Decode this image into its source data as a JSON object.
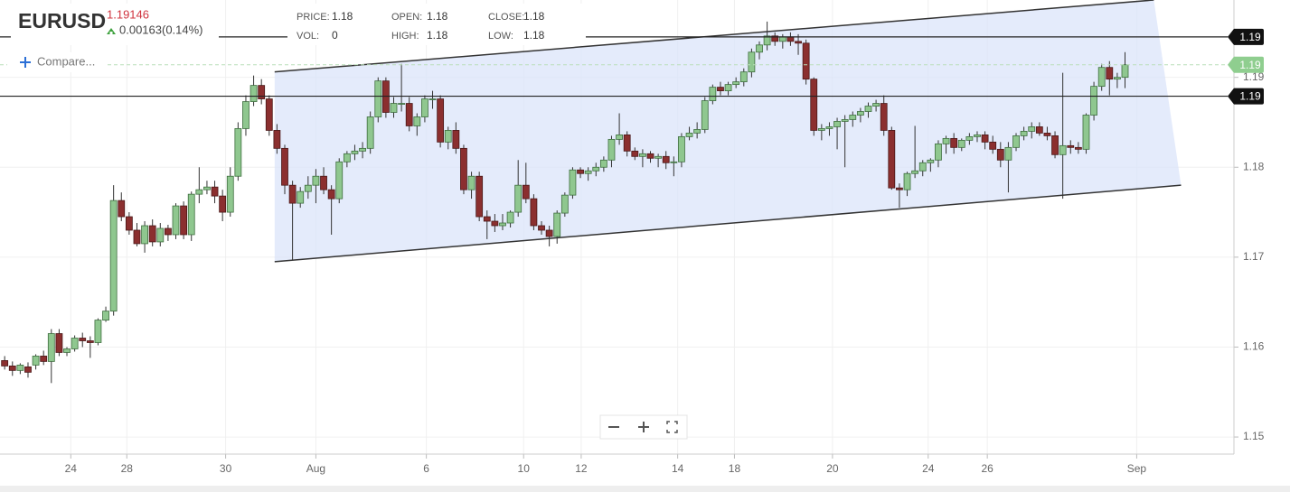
{
  "chart_data": {
    "type": "candlestick",
    "symbol": "EURUSD",
    "last": "1.19146",
    "change": "0.00163(0.14%)",
    "compare": "Compare...",
    "info": [
      {
        "label": "PRICE:",
        "value": 1.18
      },
      {
        "label": "VOL:",
        "value": 0
      },
      {
        "label": "OPEN:",
        "value": 1.18
      },
      {
        "label": "HIGH:",
        "value": 1.18
      },
      {
        "label": "CLOSE:",
        "value": 1.18
      },
      {
        "label": "LOW:",
        "value": 1.18
      }
    ],
    "up_color": "#8fc78f",
    "down_color": "#8b2f2f",
    "xlim": [
      -0.6,
      158
    ],
    "ylim": [
      1.1481,
      1.1986
    ],
    "yticks": [
      1.15,
      1.16,
      1.17,
      1.18,
      1.19
    ],
    "xticks": [
      {
        "value": 8.5,
        "label": "24"
      },
      {
        "value": 15.7,
        "label": "28"
      },
      {
        "value": 28.4,
        "label": "30"
      },
      {
        "value": 40,
        "label": "Aug"
      },
      {
        "value": 54.2,
        "label": "6"
      },
      {
        "value": 66.7,
        "label": "10"
      },
      {
        "value": 74.1,
        "label": "12"
      },
      {
        "value": 86.5,
        "label": "14"
      },
      {
        "value": 93.8,
        "label": "18"
      },
      {
        "value": 106.4,
        "label": "20"
      },
      {
        "value": 118.7,
        "label": "24"
      },
      {
        "value": 126.3,
        "label": "26"
      },
      {
        "value": 145.5,
        "label": "Sep"
      }
    ],
    "grid": true,
    "channel": {
      "upper": [
        [
          34.7,
          1.1906
        ],
        [
          147.7,
          1.1986
        ]
      ],
      "lower": [
        [
          34.7,
          1.1695
        ],
        [
          151.2,
          1.178
        ]
      ],
      "color": "#dbe4fa"
    },
    "price_lines": [
      {
        "value": 1.1945,
        "label": "1.19",
        "color": "#111111",
        "dashed": false
      },
      {
        "value": 1.1914,
        "label": "1.19",
        "color": "#8fce8f",
        "dashed": true
      },
      {
        "value": 1.1879,
        "label": "1.19",
        "color": "#111111",
        "dashed": false
      }
    ],
    "candles": [
      [
        1.1585,
        1.159,
        1.1575,
        1.1579
      ],
      [
        1.1579,
        1.1584,
        1.1568,
        1.1574
      ],
      [
        1.1574,
        1.1582,
        1.157,
        1.158
      ],
      [
        1.1578,
        1.1583,
        1.1566,
        1.1572
      ],
      [
        1.158,
        1.1592,
        1.1575,
        1.159
      ],
      [
        1.159,
        1.1596,
        1.158,
        1.1584
      ],
      [
        1.1584,
        1.162,
        1.156,
        1.1615
      ],
      [
        1.1615,
        1.162,
        1.159,
        1.1594
      ],
      [
        1.1594,
        1.16,
        1.159,
        1.1598
      ],
      [
        1.1598,
        1.1613,
        1.1595,
        1.161
      ],
      [
        1.161,
        1.1616,
        1.16,
        1.1607
      ],
      [
        1.1607,
        1.1612,
        1.1588,
        1.1605
      ],
      [
        1.1605,
        1.1632,
        1.1602,
        1.163
      ],
      [
        1.163,
        1.1645,
        1.1628,
        1.164
      ],
      [
        1.164,
        1.178,
        1.1635,
        1.1763
      ],
      [
        1.1763,
        1.1772,
        1.174,
        1.1745
      ],
      [
        1.1745,
        1.175,
        1.1725,
        1.173
      ],
      [
        1.173,
        1.1738,
        1.1712,
        1.1715
      ],
      [
        1.1715,
        1.174,
        1.1705,
        1.1735
      ],
      [
        1.1735,
        1.1742,
        1.1712,
        1.1717
      ],
      [
        1.1717,
        1.1738,
        1.1712,
        1.1732
      ],
      [
        1.1732,
        1.1736,
        1.1718,
        1.1725
      ],
      [
        1.1725,
        1.176,
        1.172,
        1.1757
      ],
      [
        1.1757,
        1.1762,
        1.172,
        1.1725
      ],
      [
        1.1725,
        1.1773,
        1.1718,
        1.177
      ],
      [
        1.177,
        1.18,
        1.176,
        1.1775
      ],
      [
        1.1775,
        1.1785,
        1.177,
        1.1778
      ],
      [
        1.1778,
        1.1785,
        1.176,
        1.1768
      ],
      [
        1.1768,
        1.1775,
        1.174,
        1.175
      ],
      [
        1.175,
        1.18,
        1.1745,
        1.179
      ],
      [
        1.179,
        1.185,
        1.1785,
        1.1843
      ],
      [
        1.1843,
        1.188,
        1.1835,
        1.1873
      ],
      [
        1.1873,
        1.1902,
        1.1868,
        1.1891
      ],
      [
        1.1891,
        1.1898,
        1.187,
        1.1876
      ],
      [
        1.1876,
        1.188,
        1.1835,
        1.1841
      ],
      [
        1.1841,
        1.1848,
        1.1815,
        1.1821
      ],
      [
        1.1821,
        1.1825,
        1.177,
        1.178
      ],
      [
        1.178,
        1.1785,
        1.1697,
        1.176
      ],
      [
        1.176,
        1.1778,
        1.1755,
        1.1773
      ],
      [
        1.1773,
        1.179,
        1.1765,
        1.178
      ],
      [
        1.178,
        1.1798,
        1.176,
        1.179
      ],
      [
        1.179,
        1.18,
        1.177,
        1.1775
      ],
      [
        1.1775,
        1.178,
        1.1725,
        1.1765
      ],
      [
        1.1765,
        1.181,
        1.176,
        1.1806
      ],
      [
        1.1806,
        1.1818,
        1.18,
        1.1815
      ],
      [
        1.1815,
        1.1825,
        1.1808,
        1.1818
      ],
      [
        1.1818,
        1.1828,
        1.181,
        1.1821
      ],
      [
        1.1821,
        1.1862,
        1.1815,
        1.1856
      ],
      [
        1.1856,
        1.19,
        1.185,
        1.1896
      ],
      [
        1.1896,
        1.19,
        1.1855,
        1.1861
      ],
      [
        1.1861,
        1.1878,
        1.1855,
        1.1871
      ],
      [
        1.1871,
        1.1915,
        1.1862,
        1.1871
      ],
      [
        1.1871,
        1.1878,
        1.184,
        1.1846
      ],
      [
        1.1846,
        1.186,
        1.1835,
        1.1856
      ],
      [
        1.1856,
        1.188,
        1.185,
        1.1876
      ],
      [
        1.1876,
        1.1885,
        1.1865,
        1.1876
      ],
      [
        1.1876,
        1.188,
        1.1822,
        1.1828
      ],
      [
        1.1828,
        1.1845,
        1.182,
        1.1841
      ],
      [
        1.1841,
        1.185,
        1.1815,
        1.1821
      ],
      [
        1.1821,
        1.1825,
        1.177,
        1.1775
      ],
      [
        1.1775,
        1.1795,
        1.1765,
        1.179
      ],
      [
        1.179,
        1.1795,
        1.174,
        1.1745
      ],
      [
        1.1745,
        1.1752,
        1.172,
        1.174
      ],
      [
        1.174,
        1.1748,
        1.1728,
        1.1735
      ],
      [
        1.1735,
        1.1748,
        1.173,
        1.1738
      ],
      [
        1.1738,
        1.1752,
        1.1733,
        1.175
      ],
      [
        1.175,
        1.1808,
        1.1745,
        1.178
      ],
      [
        1.178,
        1.1805,
        1.176,
        1.1765
      ],
      [
        1.1765,
        1.177,
        1.173,
        1.1735
      ],
      [
        1.1735,
        1.174,
        1.1725,
        1.173
      ],
      [
        1.173,
        1.1735,
        1.1712,
        1.1723
      ],
      [
        1.1723,
        1.1752,
        1.1715,
        1.1749
      ],
      [
        1.1749,
        1.1772,
        1.1745,
        1.1769
      ],
      [
        1.1769,
        1.18,
        1.1765,
        1.1797
      ],
      [
        1.1797,
        1.18,
        1.1788,
        1.1793
      ],
      [
        1.1793,
        1.18,
        1.1785,
        1.1796
      ],
      [
        1.1796,
        1.1805,
        1.179,
        1.18
      ],
      [
        1.18,
        1.1812,
        1.1795,
        1.1808
      ],
      [
        1.1808,
        1.1835,
        1.18,
        1.1831
      ],
      [
        1.1831,
        1.186,
        1.1825,
        1.1836
      ],
      [
        1.1836,
        1.184,
        1.1812,
        1.1818
      ],
      [
        1.1818,
        1.1822,
        1.1808,
        1.1812
      ],
      [
        1.1812,
        1.182,
        1.18,
        1.1815
      ],
      [
        1.1815,
        1.1818,
        1.1805,
        1.181
      ],
      [
        1.181,
        1.1815,
        1.18,
        1.1812
      ],
      [
        1.1812,
        1.1818,
        1.1798,
        1.1805
      ],
      [
        1.1805,
        1.1812,
        1.179,
        1.1806
      ],
      [
        1.1806,
        1.1838,
        1.18,
        1.1834
      ],
      [
        1.1834,
        1.1845,
        1.183,
        1.1838
      ],
      [
        1.1838,
        1.185,
        1.1832,
        1.1842
      ],
      [
        1.1842,
        1.1878,
        1.1838,
        1.1874
      ],
      [
        1.1874,
        1.1892,
        1.187,
        1.1889
      ],
      [
        1.1889,
        1.1895,
        1.188,
        1.1885
      ],
      [
        1.1885,
        1.1895,
        1.188,
        1.1892
      ],
      [
        1.1892,
        1.19,
        1.1888,
        1.1895
      ],
      [
        1.1895,
        1.191,
        1.189,
        1.1906
      ],
      [
        1.1906,
        1.1932,
        1.19,
        1.1928
      ],
      [
        1.1928,
        1.194,
        1.192,
        1.1936
      ],
      [
        1.1936,
        1.1962,
        1.193,
        1.1946
      ],
      [
        1.1946,
        1.195,
        1.1935,
        1.194
      ],
      [
        1.194,
        1.1948,
        1.1932,
        1.1945
      ],
      [
        1.1945,
        1.195,
        1.1935,
        1.194
      ],
      [
        1.194,
        1.1948,
        1.1925,
        1.1938
      ],
      [
        1.1938,
        1.1942,
        1.1892,
        1.1898
      ],
      [
        1.1898,
        1.19,
        1.1835,
        1.1841
      ],
      [
        1.1841,
        1.1848,
        1.183,
        1.1843
      ],
      [
        1.1843,
        1.185,
        1.1835,
        1.1845
      ],
      [
        1.1845,
        1.1855,
        1.182,
        1.1851
      ],
      [
        1.1851,
        1.1858,
        1.18,
        1.1853
      ],
      [
        1.1853,
        1.1862,
        1.1845,
        1.1858
      ],
      [
        1.1858,
        1.1866,
        1.185,
        1.1862
      ],
      [
        1.1862,
        1.1872,
        1.1855,
        1.1868
      ],
      [
        1.1868,
        1.1875,
        1.1862,
        1.1871
      ],
      [
        1.1871,
        1.188,
        1.1835,
        1.1841
      ],
      [
        1.1841,
        1.1845,
        1.1775,
        1.1777
      ],
      [
        1.1777,
        1.1782,
        1.1755,
        1.1775
      ],
      [
        1.1775,
        1.1795,
        1.1768,
        1.1793
      ],
      [
        1.1793,
        1.1846,
        1.1788,
        1.1796
      ],
      [
        1.1796,
        1.1808,
        1.179,
        1.1805
      ],
      [
        1.1805,
        1.181,
        1.1795,
        1.1808
      ],
      [
        1.1808,
        1.183,
        1.18,
        1.1826
      ],
      [
        1.1826,
        1.1835,
        1.1815,
        1.1832
      ],
      [
        1.1832,
        1.1838,
        1.1815,
        1.1822
      ],
      [
        1.1822,
        1.1832,
        1.1818,
        1.183
      ],
      [
        1.183,
        1.1838,
        1.1825,
        1.1834
      ],
      [
        1.1834,
        1.184,
        1.1828,
        1.1836
      ],
      [
        1.1836,
        1.184,
        1.182,
        1.1828
      ],
      [
        1.1828,
        1.1835,
        1.1815,
        1.182
      ],
      [
        1.182,
        1.1828,
        1.18,
        1.1808
      ],
      [
        1.1808,
        1.1828,
        1.1772,
        1.1822
      ],
      [
        1.1822,
        1.1838,
        1.1818,
        1.1835
      ],
      [
        1.1835,
        1.1845,
        1.183,
        1.184
      ],
      [
        1.184,
        1.185,
        1.1832,
        1.1845
      ],
      [
        1.1845,
        1.185,
        1.1835,
        1.1838
      ],
      [
        1.1838,
        1.1845,
        1.183,
        1.1835
      ],
      [
        1.1835,
        1.184,
        1.181,
        1.1814
      ],
      [
        1.1814,
        1.1905,
        1.1765,
        1.1824
      ],
      [
        1.1824,
        1.183,
        1.1815,
        1.1822
      ],
      [
        1.1822,
        1.1828,
        1.1815,
        1.182
      ],
      [
        1.182,
        1.186,
        1.1815,
        1.1858
      ],
      [
        1.1858,
        1.1895,
        1.1852,
        1.189
      ],
      [
        1.189,
        1.1915,
        1.1885,
        1.1911
      ],
      [
        1.1911,
        1.1918,
        1.188,
        1.1898
      ],
      [
        1.1898,
        1.1905,
        1.1888,
        1.19
      ],
      [
        1.19,
        1.1928,
        1.1888,
        1.1914
      ]
    ]
  }
}
